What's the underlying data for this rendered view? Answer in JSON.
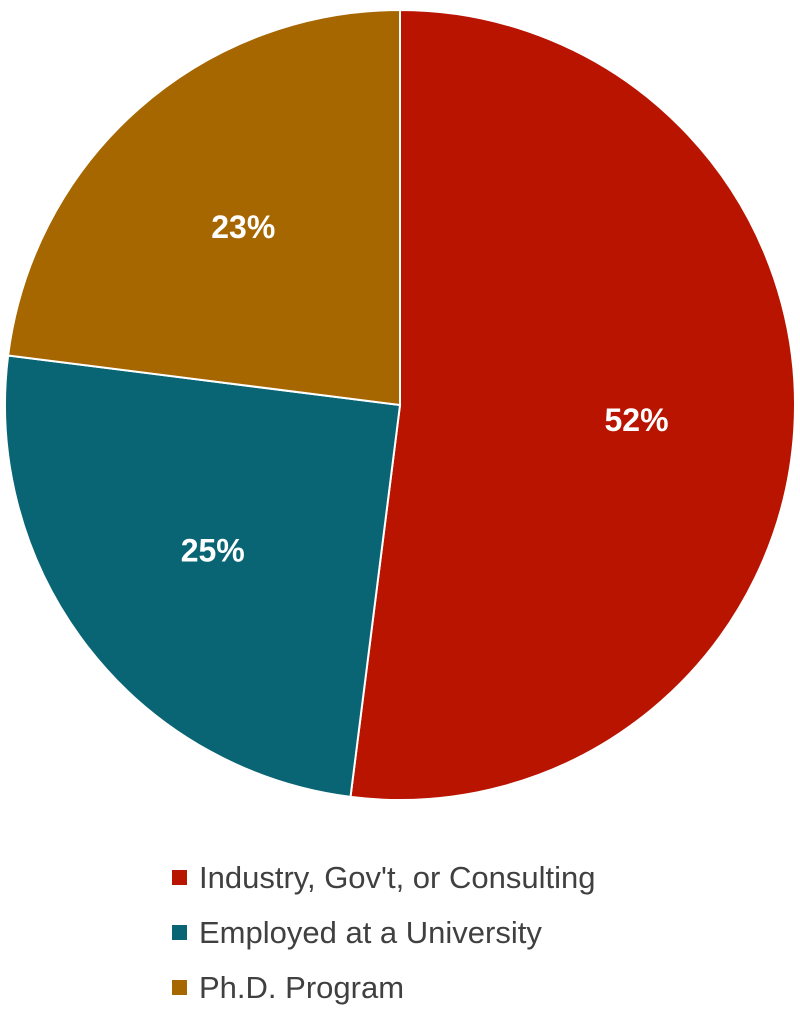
{
  "chart_data": {
    "type": "pie",
    "title": "",
    "slices": [
      {
        "name": "Industry, Gov't, or Consulting",
        "value": 52,
        "label": "52%",
        "color": "#B81400"
      },
      {
        "name": "Employed at a University",
        "value": 25,
        "label": "25%",
        "color": "#096474"
      },
      {
        "name": "Ph.D. Program",
        "value": 23,
        "label": "23%",
        "color": "#A66600"
      }
    ],
    "legend_position": "bottom"
  }
}
